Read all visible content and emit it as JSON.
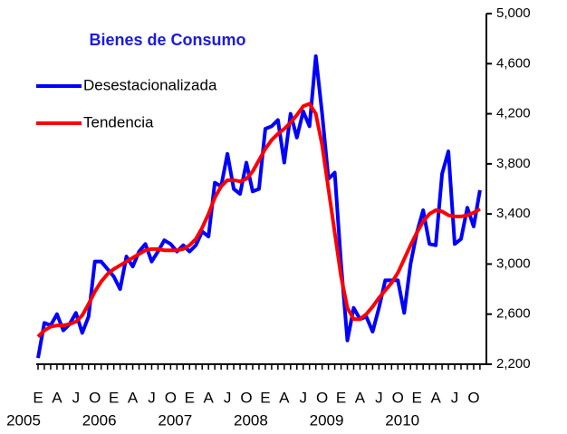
{
  "chart_data": {
    "type": "line",
    "title": "Bienes de Consumo",
    "legend": "upper left",
    "categories": [
      "E",
      null,
      null,
      "A",
      null,
      null,
      "J",
      null,
      null,
      "O",
      null,
      null,
      "E",
      null,
      null,
      "A",
      null,
      null,
      "J",
      null,
      null,
      "O",
      null,
      null,
      "E",
      null,
      null,
      "A",
      null,
      null,
      "J",
      null,
      null,
      "O",
      null,
      null,
      "E",
      null,
      null,
      "A",
      null,
      null,
      "J",
      null,
      null,
      "O",
      null,
      null,
      "E",
      null,
      null,
      "A",
      null,
      null,
      "J",
      null,
      null,
      "O",
      null,
      null,
      "E",
      null,
      null,
      "A",
      null,
      null,
      "J",
      null,
      null,
      "O",
      null
    ],
    "year_labels": [
      "2005",
      "2006",
      "2007",
      "2008",
      "2009",
      "2010"
    ],
    "series": [
      {
        "name": "Desestacionalizada",
        "color": "#0000ff",
        "values": [
          2250,
          2530,
          2510,
          2600,
          2470,
          2520,
          2610,
          2450,
          2580,
          3020,
          3020,
          2960,
          2900,
          2800,
          3060,
          2980,
          3100,
          3160,
          3020,
          3100,
          3190,
          3160,
          3100,
          3150,
          3100,
          3150,
          3260,
          3220,
          3650,
          3620,
          3880,
          3600,
          3560,
          3810,
          3580,
          3600,
          4080,
          4100,
          4150,
          3810,
          4200,
          4010,
          4220,
          4100,
          4660,
          4200,
          3680,
          3730,
          3000,
          2390,
          2650,
          2560,
          2580,
          2460,
          2650,
          2870,
          2870,
          2870,
          2610,
          3000,
          3250,
          3430,
          3160,
          3150,
          3720,
          3900,
          3160,
          3200,
          3450,
          3300,
          3590
        ]
      },
      {
        "name": "Tendencia",
        "color": "#ff0000",
        "values": [
          2420,
          2470,
          2500,
          2510,
          2510,
          2520,
          2540,
          2590,
          2680,
          2780,
          2860,
          2920,
          2960,
          2990,
          3020,
          3050,
          3080,
          3110,
          3120,
          3120,
          3110,
          3110,
          3110,
          3120,
          3150,
          3200,
          3290,
          3400,
          3530,
          3620,
          3670,
          3670,
          3660,
          3680,
          3740,
          3830,
          3920,
          3990,
          4040,
          4080,
          4130,
          4190,
          4260,
          4280,
          4200,
          3950,
          3600,
          3250,
          2900,
          2650,
          2560,
          2560,
          2600,
          2660,
          2730,
          2790,
          2850,
          2930,
          3040,
          3150,
          3250,
          3340,
          3400,
          3430,
          3420,
          3390,
          3380,
          3380,
          3390,
          3410,
          3440
        ]
      }
    ],
    "ylim": [
      2200,
      5000
    ],
    "yticks": [
      {
        "value": 2200,
        "label": "2,200"
      },
      {
        "value": 2600,
        "label": "2,600"
      },
      {
        "value": 3000,
        "label": "3,000"
      },
      {
        "value": 3400,
        "label": "3,400"
      },
      {
        "value": 3800,
        "label": "3,800"
      },
      {
        "value": 4200,
        "label": "4,200"
      },
      {
        "value": 4600,
        "label": "4,600"
      },
      {
        "value": 5000,
        "label": "5,000"
      }
    ]
  }
}
